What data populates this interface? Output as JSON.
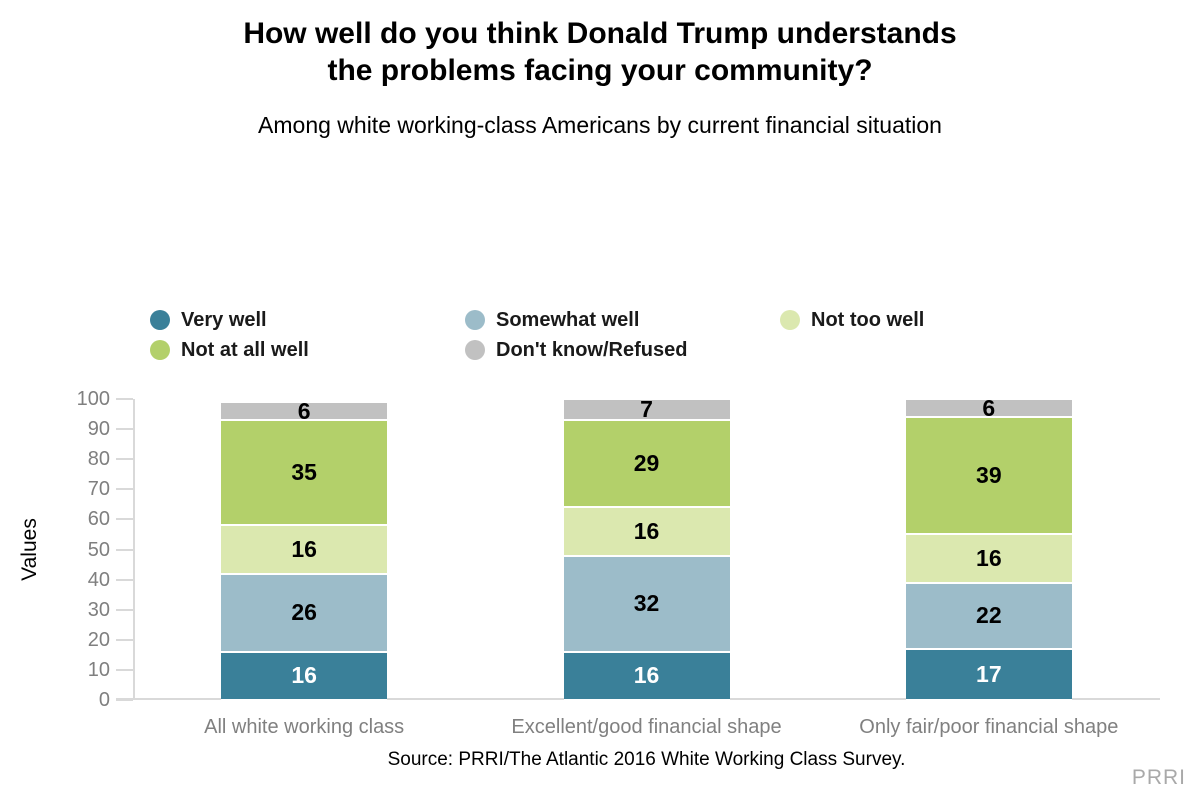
{
  "title": "How well do you think Donald Trump understands the problems facing your community?",
  "subtitle": "Among white working-class Americans by current financial situation",
  "source": "Source: PRRI/The Atlantic 2016 White Working Class Survey.",
  "watermark": "PRRI",
  "colors": {
    "axis_line": "#d9d9d9",
    "tick_label": "#7f7f7f",
    "category_label": "#808080",
    "watermark": "#a9a9a9"
  },
  "chart_data": {
    "type": "bar",
    "stacked": true,
    "title": "How well do you think Donald Trump understands the problems facing your community?",
    "subtitle": "Among white working-class Americans by current financial situation",
    "categories": [
      "All white working class",
      "Excellent/good financial shape",
      "Only fair/poor financial shape"
    ],
    "series": [
      {
        "name": "Very well",
        "color": "#3a8099",
        "label_color": "#ffffff",
        "values": [
          16,
          16,
          17
        ]
      },
      {
        "name": "Somewhat well",
        "color": "#9cbcc9",
        "label_color": "#000000",
        "values": [
          26,
          32,
          22
        ]
      },
      {
        "name": "Not too well",
        "color": "#dbe8af",
        "label_color": "#000000",
        "values": [
          16,
          16,
          16
        ]
      },
      {
        "name": "Not at all well",
        "color": "#b3d06a",
        "label_color": "#000000",
        "values": [
          35,
          29,
          39
        ]
      },
      {
        "name": "Don't know/Refused",
        "color": "#c1c1c1",
        "label_color": "#000000",
        "values": [
          6,
          7,
          6
        ]
      }
    ],
    "xlabel": "",
    "ylabel": "Values",
    "ylim": [
      0,
      100
    ],
    "ytick_step": 10,
    "grid": false,
    "legend_position": "above-plot-left",
    "bar_totals": [
      99,
      100,
      100
    ]
  }
}
